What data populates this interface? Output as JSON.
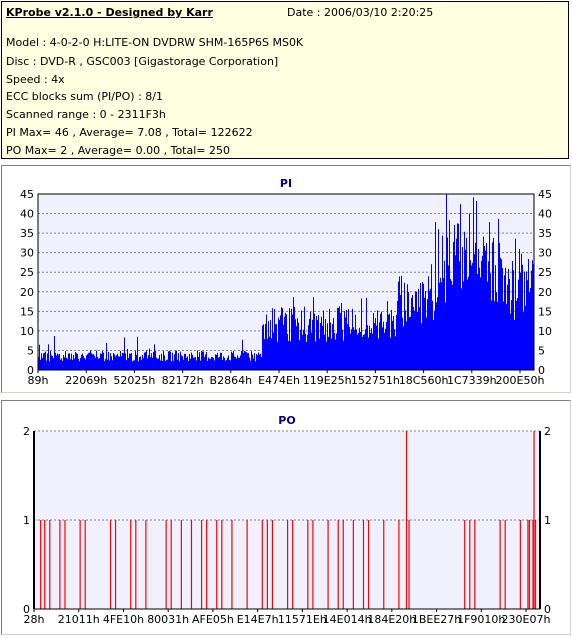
{
  "header": {
    "title": "KProbe v2.1.0 - Designed by Karr",
    "date": "Date : 2006/03/10 2:20:25",
    "lines": [
      "Model : 4-0-2-0 H:LITE-ON DVDRW SHM-165P6S MS0K",
      "Disc : DVD-R , GSC003 [Gigastorage Corporation]",
      "Speed : 4x",
      "ECC blocks sum (PI/PO) : 8/1",
      "Scanned range : 0 - 2311F3h",
      "PI Max= 46 , Average= 7.08 , Total= 122622",
      "PO Max= 2 , Average= 0.00 , Total= 250"
    ]
  },
  "colors": {
    "pi_bar": "#0000ff",
    "po_bar": "#ff0000",
    "plot_bg": "#f0f0ff",
    "grid": "#808080"
  },
  "chart_data": [
    {
      "type": "bar",
      "title": "PI",
      "xlabel": "",
      "ylabel": "",
      "ylim": [
        0,
        45
      ],
      "yticks": [
        0,
        5,
        10,
        15,
        20,
        25,
        30,
        35,
        40,
        45
      ],
      "xtick_labels": [
        "89h",
        "22069h",
        "52025h",
        "82172h",
        "B2864h",
        "E474Eh",
        "119E25h",
        "152751h",
        "18C560h",
        "1C7339h",
        "200E50h"
      ],
      "grid": true,
      "segments": [
        {
          "x_from": 0.0,
          "x_to": 0.45,
          "approx_value": 4,
          "peak": 9
        },
        {
          "x_from": 0.45,
          "x_to": 0.72,
          "approx_value": 13,
          "peak": 19
        },
        {
          "x_from": 0.72,
          "x_to": 0.8,
          "approx_value": 20,
          "peak": 32
        },
        {
          "x_from": 0.8,
          "x_to": 0.93,
          "approx_value": 31,
          "peak": 46
        },
        {
          "x_from": 0.93,
          "x_to": 1.0,
          "approx_value": 23,
          "peak": 36
        }
      ]
    },
    {
      "type": "bar",
      "title": "PO",
      "xlabel": "",
      "ylabel": "",
      "ylim": [
        0,
        2
      ],
      "yticks": [
        0,
        1,
        2
      ],
      "xtick_labels": [
        "28h",
        "21011h",
        "4FE10h",
        "80031h",
        "AFE05h",
        "E14E7h",
        "11571Eh",
        "14E014h",
        "184E20h",
        "1BEE27h",
        "1F9010h",
        "230E07h"
      ],
      "grid": true,
      "value_one_positions": [
        0.012,
        0.02,
        0.03,
        0.05,
        0.06,
        0.09,
        0.1,
        0.15,
        0.16,
        0.19,
        0.2,
        0.22,
        0.26,
        0.27,
        0.29,
        0.31,
        0.33,
        0.34,
        0.36,
        0.37,
        0.39,
        0.42,
        0.45,
        0.46,
        0.47,
        0.5,
        0.51,
        0.54,
        0.55,
        0.58,
        0.6,
        0.61,
        0.63,
        0.65,
        0.66,
        0.69,
        0.72,
        0.74,
        0.85,
        0.86,
        0.87,
        0.92,
        0.93,
        0.96,
        0.975,
        0.978,
        0.985,
        0.99
      ],
      "value_two_positions": [
        0.735,
        0.987
      ]
    }
  ]
}
